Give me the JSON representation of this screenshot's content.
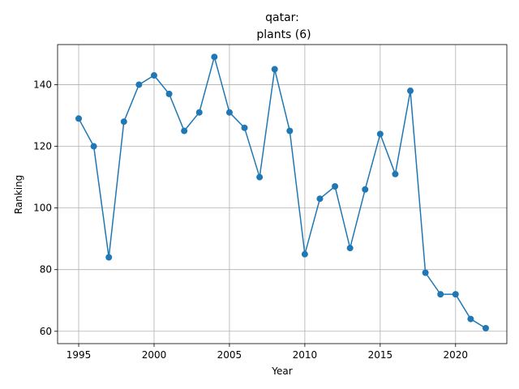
{
  "chart_data": {
    "type": "line",
    "title_line1": "qatar:",
    "title_line2": "plants (6)",
    "xlabel": "Year",
    "ylabel": "Ranking",
    "xlim": [
      1993.6,
      2023.4
    ],
    "ylim": [
      56.0,
      153.0
    ],
    "xticks": [
      1995,
      2000,
      2005,
      2010,
      2015,
      2020
    ],
    "yticks": [
      60,
      80,
      100,
      120,
      140
    ],
    "grid": true,
    "color": "#1f77b4",
    "marker": "circle",
    "series": [
      {
        "x": [
          1995,
          1996,
          1997,
          1998,
          1999,
          2000,
          2001,
          2002,
          2003,
          2004,
          2005,
          2006,
          2007,
          2008,
          2009,
          2010,
          2011,
          2012,
          2013,
          2014,
          2015,
          2016,
          2017,
          2018,
          2019,
          2020,
          2021,
          2022
        ],
        "y": [
          129,
          120,
          84,
          128,
          140,
          143,
          137,
          125,
          131,
          149,
          131,
          126,
          110,
          145,
          125,
          85,
          103,
          107,
          87,
          106,
          124,
          111,
          138,
          79,
          72,
          72,
          64,
          61
        ]
      }
    ]
  }
}
